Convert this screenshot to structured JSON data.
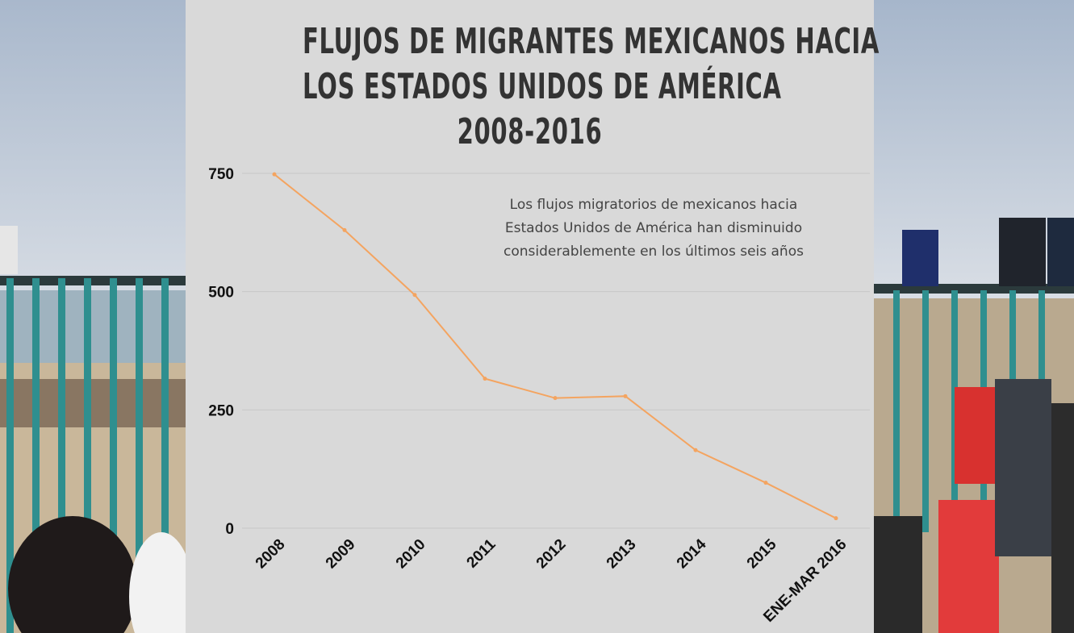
{
  "title_lines": [
    "FLUJOS DE MIGRANTES MEXICANOS HACIA",
    "LOS ESTADOS UNIDOS DE AMÉRICA",
    "2008-2016"
  ],
  "annotation_lines": [
    "Los flujos migratorios de mexicanos hacia",
    "Estados Unidos de América han disminuido",
    "considerablemente en los últimos seis años"
  ],
  "colors": {
    "panel_bg": "#d9d9d9",
    "line": "#f4a460",
    "grid": "#c8c8c8",
    "title": "#333333"
  },
  "chart_data": {
    "type": "line",
    "title": "FLUJOS DE MIGRANTES MEXICANOS HACIA LOS ESTADOS UNIDOS DE AMÉRICA 2008-2016",
    "categories": [
      "2008",
      "2009",
      "2010",
      "2011",
      "2012",
      "2013",
      "2014",
      "2015",
      "ENE-MAR 2016"
    ],
    "series": [
      {
        "name": "Flujos de migrantes",
        "values": [
          748,
          630,
          493,
          316,
          275,
          279,
          165,
          96,
          21
        ]
      }
    ],
    "y_ticks": [
      0,
      250,
      500,
      750
    ],
    "ylim": [
      0,
      750
    ],
    "xlabel": "",
    "ylabel": "",
    "grid": true,
    "legend": "none"
  }
}
